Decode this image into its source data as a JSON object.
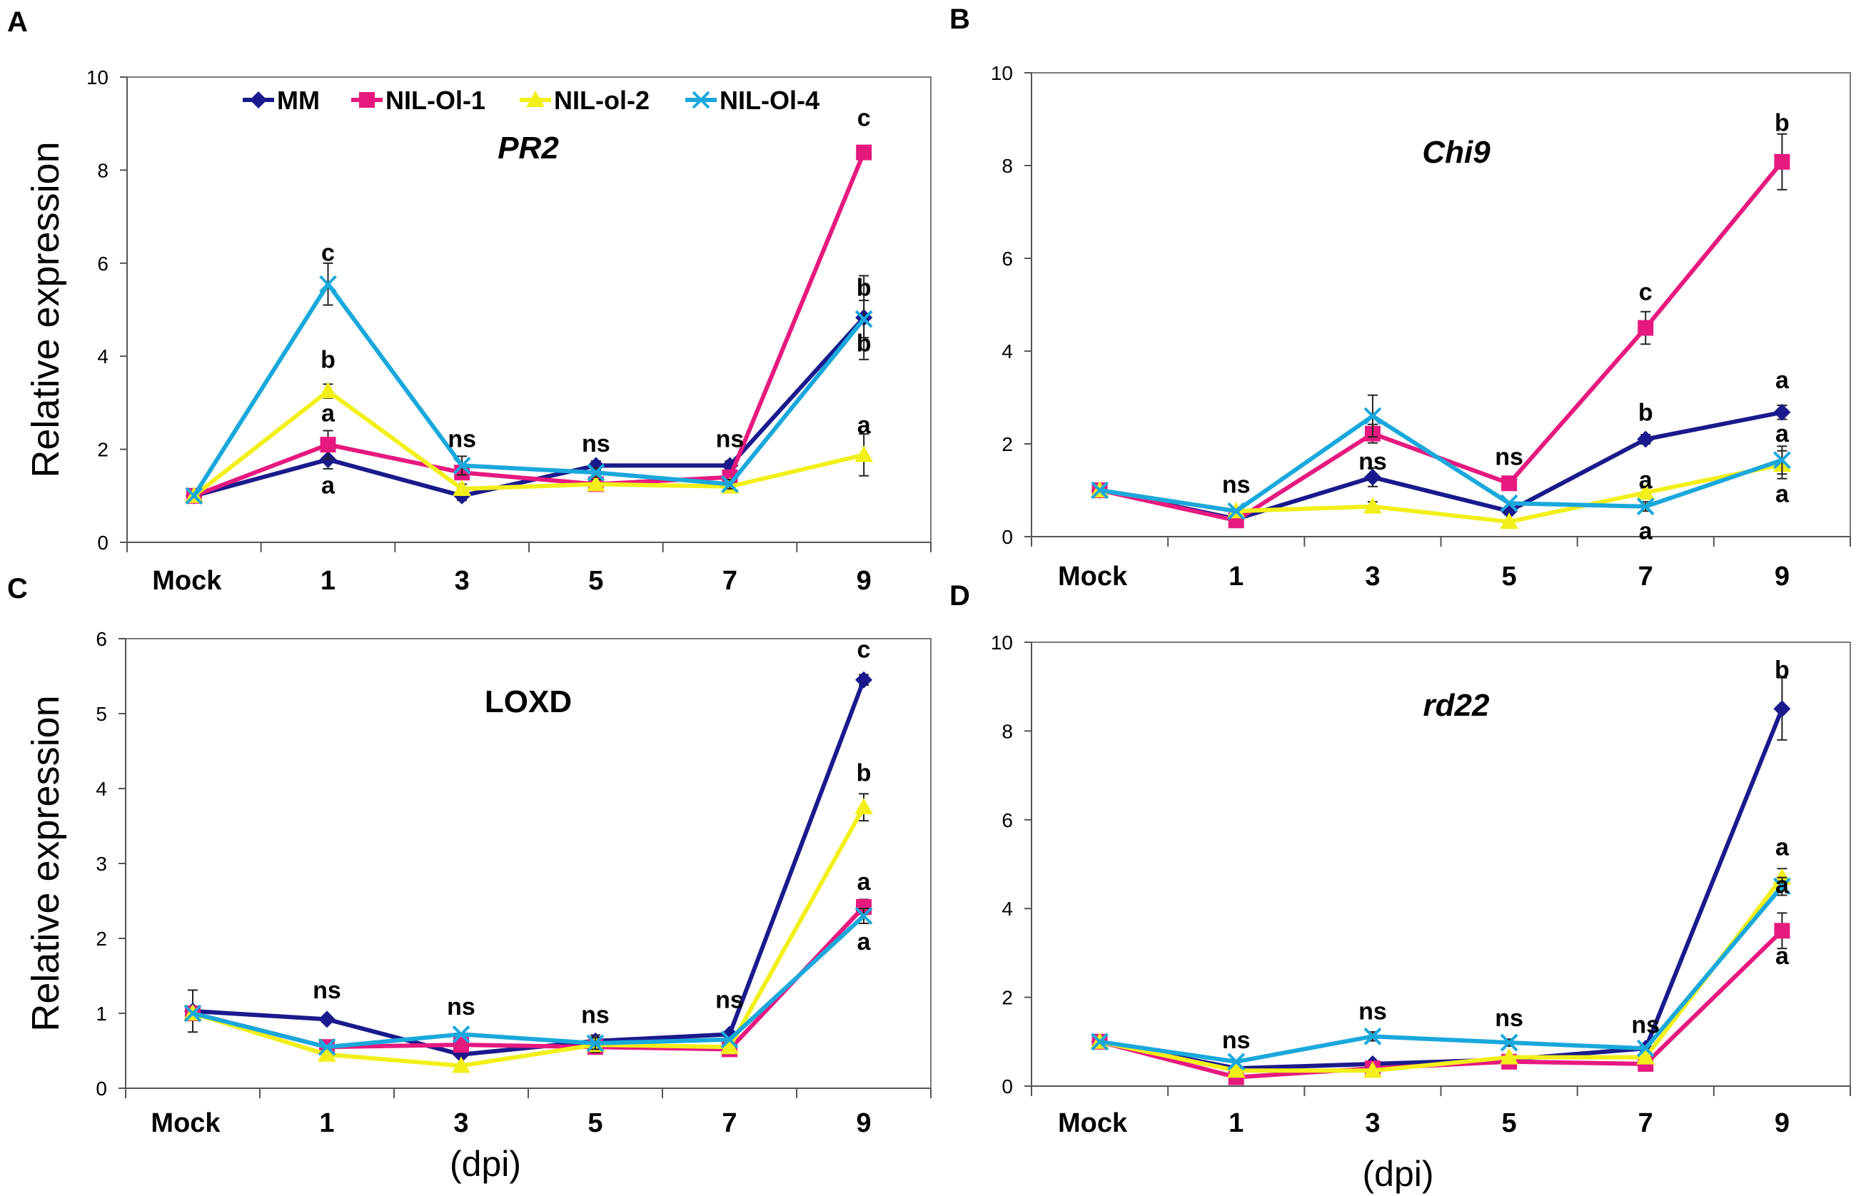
{
  "series_info": [
    {
      "name": "MM",
      "color": "#1a1a8c",
      "marker": "diamond"
    },
    {
      "name": "NIL-Ol-1",
      "color": "#e6197f",
      "marker": "square"
    },
    {
      "name": "NIL-ol-2",
      "color": "#f2ef1a",
      "marker": "triangle"
    },
    {
      "name": "NIL-Ol-4",
      "color": "#1aa8dc",
      "marker": "x"
    }
  ],
  "chart_data": [
    {
      "panel": "A",
      "type": "line",
      "title": "PR2",
      "title_italic": true,
      "xlabel": "",
      "ylabel": "Relative expression",
      "categories": [
        "Mock",
        "1",
        "3",
        "5",
        "7",
        "9"
      ],
      "ylim": [
        0,
        10
      ],
      "yticks": [
        0,
        2,
        4,
        6,
        8,
        10
      ],
      "grid": false,
      "legend": "top",
      "series": [
        {
          "name": "MM",
          "values": [
            1.0,
            1.78,
            1.0,
            1.65,
            1.65,
            4.83
          ],
          "errors": [
            0.05,
            0.2,
            0.1,
            0.1,
            0.1,
            0.9
          ]
        },
        {
          "name": "NIL-Ol-1",
          "values": [
            1.0,
            2.1,
            1.5,
            1.25,
            1.4,
            8.38
          ],
          "errors": [
            0.05,
            0.3,
            0.15,
            0.1,
            0.1,
            0.1
          ]
        },
        {
          "name": "NIL-ol-2",
          "values": [
            1.0,
            3.25,
            1.15,
            1.25,
            1.2,
            1.88
          ],
          "errors": [
            0.05,
            0.15,
            0.1,
            0.1,
            0.1,
            0.45
          ]
        },
        {
          "name": "NIL-Ol-4",
          "values": [
            1.0,
            5.55,
            1.65,
            1.5,
            1.25,
            4.8
          ],
          "errors": [
            0.05,
            0.45,
            0.2,
            0.1,
            0.1,
            0.4
          ]
        }
      ],
      "annotations": [
        {
          "text": "c",
          "x": "1",
          "y": 6.05
        },
        {
          "text": "b",
          "x": "1",
          "y": 3.75
        },
        {
          "text": "a",
          "x": "1",
          "y": 2.6
        },
        {
          "text": "a",
          "x": "1",
          "y": 1.05
        },
        {
          "text": "ns",
          "x": "3",
          "y": 2.05
        },
        {
          "text": "ns",
          "x": "5",
          "y": 1.95
        },
        {
          "text": "ns",
          "x": "7",
          "y": 2.05
        },
        {
          "text": "c",
          "x": "9",
          "y": 8.95
        },
        {
          "text": "b",
          "x": "9",
          "y": 5.3
        },
        {
          "text": "b",
          "x": "9",
          "y": 4.1
        },
        {
          "text": "a",
          "x": "9",
          "y": 2.35
        }
      ]
    },
    {
      "panel": "B",
      "type": "line",
      "title": "Chi9",
      "title_italic": true,
      "xlabel": "",
      "ylabel": "",
      "categories": [
        "Mock",
        "1",
        "3",
        "5",
        "7",
        "9"
      ],
      "ylim": [
        0,
        10
      ],
      "yticks": [
        0,
        2,
        4,
        6,
        8,
        10
      ],
      "grid": false,
      "series": [
        {
          "name": "MM",
          "values": [
            1.0,
            0.38,
            1.28,
            0.55,
            2.1,
            2.68
          ],
          "errors": [
            0.05,
            0.05,
            0.2,
            0.05,
            0.1,
            0.15
          ]
        },
        {
          "name": "NIL-Ol-1",
          "values": [
            1.0,
            0.35,
            2.22,
            1.15,
            4.5,
            8.08
          ],
          "errors": [
            0.05,
            0.05,
            0.2,
            0.1,
            0.35,
            0.6
          ]
        },
        {
          "name": "NIL-ol-2",
          "values": [
            1.0,
            0.55,
            0.65,
            0.32,
            0.95,
            1.55
          ],
          "errors": [
            0.05,
            0.05,
            0.1,
            0.05,
            0.1,
            0.3
          ]
        },
        {
          "name": "NIL-Ol-4",
          "values": [
            1.0,
            0.55,
            2.6,
            0.72,
            0.65,
            1.65
          ],
          "errors": [
            0.05,
            0.05,
            0.45,
            0.05,
            0.1,
            0.3
          ]
        }
      ],
      "annotations": [
        {
          "text": "ns",
          "x": "1",
          "y": 0.95
        },
        {
          "text": "ns",
          "x": "3",
          "y": 1.45
        },
        {
          "text": "ns",
          "x": "5",
          "y": 1.55
        },
        {
          "text": "c",
          "x": "7",
          "y": 5.1
        },
        {
          "text": "b",
          "x": "7",
          "y": 2.5
        },
        {
          "text": "a",
          "x": "7",
          "y": 1.05
        },
        {
          "text": "a",
          "x": "7",
          "y": -0.05
        },
        {
          "text": "b",
          "x": "9",
          "y": 8.75
        },
        {
          "text": "a",
          "x": "9",
          "y": 3.2
        },
        {
          "text": "a",
          "x": "9",
          "y": 2.05
        },
        {
          "text": "a",
          "x": "9",
          "y": 0.75
        }
      ]
    },
    {
      "panel": "C",
      "type": "line",
      "title": "LOXD",
      "title_italic": false,
      "xlabel": "(dpi)",
      "ylabel": "Relative expression",
      "categories": [
        "Mock",
        "1",
        "3",
        "5",
        "7",
        "9"
      ],
      "ylim": [
        0,
        6
      ],
      "yticks": [
        0,
        1,
        2,
        3,
        4,
        5,
        6
      ],
      "grid": false,
      "series": [
        {
          "name": "MM",
          "values": [
            1.03,
            0.92,
            0.45,
            0.63,
            0.72,
            5.45
          ],
          "errors": [
            0.28,
            0.05,
            0.05,
            0.08,
            0.05,
            0.07
          ]
        },
        {
          "name": "NIL-Ol-1",
          "values": [
            1.0,
            0.55,
            0.58,
            0.55,
            0.52,
            2.42
          ],
          "errors": [
            0.05,
            0.05,
            0.08,
            0.08,
            0.05,
            0.1
          ]
        },
        {
          "name": "NIL-ol-2",
          "values": [
            1.0,
            0.45,
            0.3,
            0.58,
            0.55,
            3.75
          ],
          "errors": [
            0.05,
            0.05,
            0.05,
            0.1,
            0.05,
            0.18
          ]
        },
        {
          "name": "NIL-Ol-4",
          "values": [
            1.0,
            0.55,
            0.72,
            0.6,
            0.65,
            2.3
          ],
          "errors": [
            0.05,
            0.05,
            0.05,
            0.08,
            0.05,
            0.1
          ]
        }
      ],
      "annotations": [
        {
          "text": "ns",
          "x": "1",
          "y": 1.2
        },
        {
          "text": "ns",
          "x": "3",
          "y": 0.98
        },
        {
          "text": "ns",
          "x": "5",
          "y": 0.87
        },
        {
          "text": "ns",
          "x": "7",
          "y": 1.07
        },
        {
          "text": "c",
          "x": "9",
          "y": 5.75
        },
        {
          "text": "b",
          "x": "9",
          "y": 4.1
        },
        {
          "text": "a",
          "x": "9",
          "y": 2.65
        },
        {
          "text": "a",
          "x": "9",
          "y": 1.85
        }
      ]
    },
    {
      "panel": "D",
      "type": "line",
      "title": "rd22",
      "title_italic": true,
      "xlabel": "(dpi)",
      "ylabel": "",
      "categories": [
        "Mock",
        "1",
        "3",
        "5",
        "7",
        "9"
      ],
      "ylim": [
        0,
        10
      ],
      "yticks": [
        0,
        2,
        4,
        6,
        8,
        10
      ],
      "grid": false,
      "series": [
        {
          "name": "MM",
          "values": [
            1.0,
            0.4,
            0.5,
            0.6,
            0.85,
            8.5
          ],
          "errors": [
            0.05,
            0.05,
            0.05,
            0.05,
            0.05,
            0.7
          ]
        },
        {
          "name": "NIL-Ol-1",
          "values": [
            1.0,
            0.2,
            0.4,
            0.55,
            0.5,
            3.5
          ],
          "errors": [
            0.05,
            0.05,
            0.05,
            0.05,
            0.05,
            0.4
          ]
        },
        {
          "name": "NIL-ol-2",
          "values": [
            1.0,
            0.35,
            0.35,
            0.65,
            0.65,
            4.7
          ],
          "errors": [
            0.05,
            0.05,
            0.05,
            0.05,
            0.05,
            0.2
          ]
        },
        {
          "name": "NIL-Ol-4",
          "values": [
            1.0,
            0.55,
            1.12,
            0.98,
            0.85,
            4.5
          ],
          "errors": [
            0.05,
            0.05,
            0.1,
            0.08,
            0.05,
            0.2
          ]
        }
      ],
      "annotations": [
        {
          "text": "ns",
          "x": "1",
          "y": 0.85
        },
        {
          "text": "ns",
          "x": "3",
          "y": 1.5
        },
        {
          "text": "ns",
          "x": "5",
          "y": 1.35
        },
        {
          "text": "ns",
          "x": "7",
          "y": 1.2
        },
        {
          "text": "b",
          "x": "9",
          "y": 9.2
        },
        {
          "text": "a",
          "x": "9",
          "y": 5.2
        },
        {
          "text": "a",
          "x": "9",
          "y": 4.35
        },
        {
          "text": "a",
          "x": "9",
          "y": 2.75
        }
      ]
    }
  ]
}
